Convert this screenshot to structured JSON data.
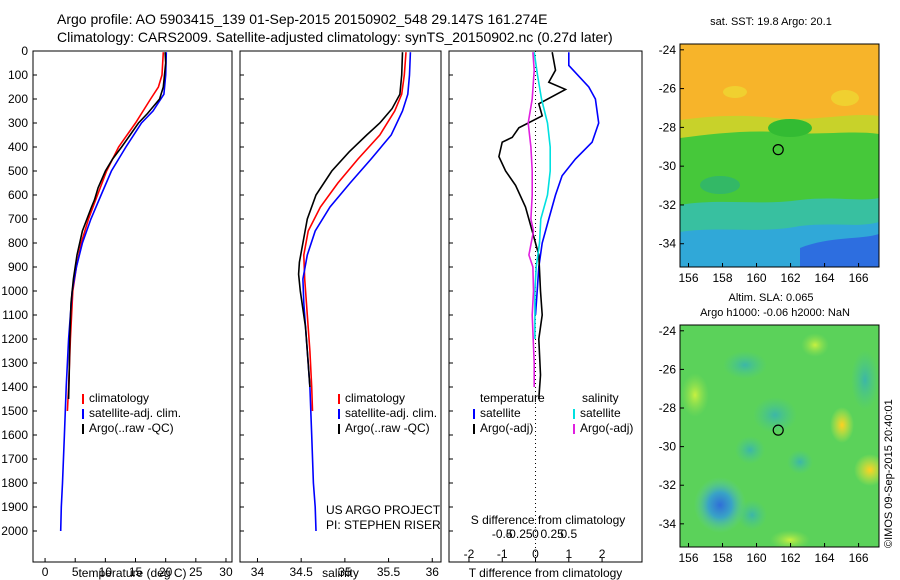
{
  "header": {
    "line1": "Argo profile: AO 5903415_139 01-Sep-2015 20150902_548 29.147S 161.274E",
    "line2": "Climatology: CARS2009. Satellite-adjusted climatology: synTS_20150902.nc (0.27d later)"
  },
  "colors": {
    "climatology": "#ff0000",
    "satellite": "#0000ff",
    "argo": "#000000",
    "t_satellite": "#0000ff",
    "s_satellite": "#00e0e0",
    "s_argo": "#e020e0"
  },
  "chart_data": [
    {
      "type": "line",
      "panel": "temperature",
      "xlabel": "temperature (deg C)",
      "xlim": [
        -2,
        31
      ],
      "xticks": [
        0,
        5,
        10,
        15,
        20,
        25,
        30
      ],
      "ylim": [
        0,
        2100
      ],
      "yticks": [
        0,
        100,
        200,
        300,
        400,
        500,
        600,
        700,
        800,
        900,
        1000,
        1100,
        1200,
        1300,
        1400,
        1500,
        1600,
        1700,
        1800,
        1900,
        2000
      ],
      "legend": [
        "climatology",
        "satellite-adj. clim.",
        "Argo(..raw -QC)"
      ],
      "series": [
        {
          "name": "climatology",
          "color_key": "climatology",
          "x": [
            19.6,
            19.4,
            18.8,
            17.5,
            15.0,
            12.2,
            10.2,
            8.7,
            7.2,
            6.0,
            5.2,
            4.6,
            4.2,
            3.9,
            3.7
          ],
          "y": [
            5,
            100,
            150,
            200,
            300,
            400,
            500,
            600,
            700,
            800,
            900,
            1000,
            1200,
            1400,
            1500
          ]
        },
        {
          "name": "satellite-adj. clim.",
          "color_key": "satellite",
          "x": [
            20.1,
            20.0,
            19.7,
            17.9,
            16.0,
            13.4,
            11.0,
            9.3,
            7.6,
            6.2,
            5.2,
            4.5,
            3.9,
            3.5,
            3.2,
            2.9,
            2.7,
            2.6
          ],
          "y": [
            5,
            100,
            180,
            250,
            300,
            400,
            500,
            600,
            700,
            800,
            900,
            1000,
            1200,
            1400,
            1600,
            1800,
            1900,
            2000
          ]
        },
        {
          "name": "Argo(..raw -QC)",
          "color_key": "argo",
          "x": [
            19.9,
            20.0,
            19.8,
            19.6,
            19.0,
            17.0,
            15.5,
            14.1,
            12.7,
            11.2,
            10.0,
            8.8,
            8.2,
            7.7,
            6.2,
            5.3,
            4.7,
            4.3,
            4.1,
            4.0,
            3.9
          ],
          "y": [
            5,
            50,
            100,
            150,
            200,
            260,
            300,
            350,
            400,
            450,
            500,
            570,
            620,
            650,
            750,
            850,
            950,
            1050,
            1200,
            1350,
            1450
          ]
        }
      ]
    },
    {
      "type": "line",
      "panel": "salinity",
      "xlabel": "salinity",
      "xlim": [
        33.8,
        36.1
      ],
      "xticks": [
        34,
        34.5,
        35,
        35.5,
        36
      ],
      "ylim": [
        0,
        2100
      ],
      "legend": [
        "climatology",
        "satellite-adj. clim.",
        "Argo(..raw -QC)"
      ],
      "annotation": [
        "US ARGO PROJECT",
        "PI: STEPHEN RISER"
      ],
      "series": [
        {
          "name": "climatology",
          "color_key": "climatology",
          "x": [
            35.7,
            35.68,
            35.65,
            35.57,
            35.4,
            35.15,
            34.92,
            34.72,
            34.58,
            34.53,
            34.54,
            34.57,
            34.6,
            34.62,
            34.63
          ],
          "y": [
            5,
            100,
            180,
            250,
            350,
            450,
            550,
            650,
            750,
            850,
            950,
            1100,
            1250,
            1400,
            1500
          ]
        },
        {
          "name": "satellite-adj. clim.",
          "color_key": "satellite",
          "x": [
            35.75,
            35.74,
            35.72,
            35.66,
            35.53,
            35.3,
            35.06,
            34.83,
            34.66,
            34.57,
            34.52,
            34.53,
            34.56,
            34.6,
            34.62,
            34.64,
            34.66,
            34.67
          ],
          "y": [
            5,
            100,
            180,
            250,
            350,
            450,
            550,
            650,
            750,
            850,
            950,
            1050,
            1200,
            1400,
            1600,
            1800,
            1900,
            2000
          ]
        },
        {
          "name": "Argo(..raw -QC)",
          "color_key": "argo",
          "x": [
            35.66,
            35.65,
            35.63,
            35.54,
            35.4,
            35.25,
            35.05,
            34.85,
            34.67,
            34.57,
            34.52,
            34.48,
            34.47,
            34.49,
            34.55,
            34.58,
            34.6
          ],
          "y": [
            5,
            100,
            180,
            240,
            300,
            350,
            420,
            500,
            600,
            700,
            800,
            880,
            930,
            1000,
            1150,
            1300,
            1400
          ]
        }
      ]
    },
    {
      "type": "line",
      "panel": "difference",
      "xlabel": "T difference from climatology",
      "top_label": "S difference from climatology",
      "xlim": [
        -2.6,
        3.2
      ],
      "t_ticks": [
        -2,
        -1,
        0,
        1,
        2
      ],
      "s_ticks": [
        -0.5,
        -0.25,
        0,
        0.25,
        0.5
      ],
      "s_tick_labels": [
        "-0.5",
        "-0.25",
        "0",
        "0.25",
        "0.5"
      ],
      "ylim": [
        0,
        2100
      ],
      "legend_headers": [
        "temperature",
        "salinity"
      ],
      "legend": [
        "satellite",
        "Argo(-adj)",
        "satellite",
        "Argo(-adj)"
      ],
      "series": [
        {
          "name": "temperature satellite",
          "color_key": "t_satellite",
          "x": [
            1.0,
            1.0,
            1.6,
            1.8,
            1.9,
            1.7,
            1.2,
            0.8,
            0.6,
            0.4,
            0.2,
            0.1,
            0.05,
            0.0
          ],
          "y": [
            5,
            60,
            150,
            200,
            300,
            380,
            450,
            520,
            600,
            700,
            800,
            900,
            1000,
            1100
          ]
        },
        {
          "name": "temperature Argo(-adj)",
          "color_key": "argo",
          "x": [
            0.5,
            0.6,
            0.4,
            0.9,
            0.1,
            0.2,
            -0.5,
            -0.7,
            -1.0,
            -1.1,
            -0.9,
            -0.6,
            -0.3,
            -0.1,
            0.1,
            0.15,
            0.2,
            0.1,
            0.15,
            0.1
          ],
          "y": [
            5,
            80,
            130,
            160,
            220,
            270,
            320,
            360,
            380,
            440,
            500,
            560,
            650,
            750,
            850,
            1000,
            1100,
            1200,
            1350,
            1450
          ]
        },
        {
          "name": "salinity satellite",
          "color_key": "s_satellite",
          "x": [
            -0.02,
            0.03,
            0.09,
            0.18,
            0.22,
            0.22,
            0.18,
            0.08,
            0.06,
            0.01,
            -0.01,
            -0.01
          ],
          "y": [
            5,
            100,
            200,
            300,
            400,
            500,
            600,
            700,
            800,
            900,
            1000,
            1200
          ]
        },
        {
          "name": "salinity Argo(-adj)",
          "color_key": "s_argo",
          "x": [
            -0.04,
            -0.02,
            -0.05,
            -0.11,
            -0.07,
            -0.05,
            -0.05,
            -0.07,
            -0.03,
            -0.1,
            -0.04,
            -0.03,
            -0.05,
            -0.02,
            -0.02
          ],
          "y": [
            5,
            80,
            200,
            300,
            400,
            500,
            600,
            700,
            750,
            850,
            900,
            1000,
            1100,
            1300,
            1400
          ]
        }
      ]
    },
    {
      "type": "heatmap",
      "panel": "sst_map",
      "title": "sat. SST: 19.8 Argo: 20.1",
      "xlim": [
        155.5,
        167.2
      ],
      "ylim": [
        -35.2,
        -23.7
      ],
      "xticks": [
        156,
        158,
        160,
        162,
        164,
        166
      ],
      "yticks": [
        -24,
        -26,
        -28,
        -30,
        -32,
        -34
      ],
      "float_position": {
        "lon": 161.274,
        "lat": -29.147
      }
    },
    {
      "type": "heatmap",
      "panel": "sla_map",
      "title_line1": "Altim. SLA: 0.065",
      "title_line2": "Argo h1000: -0.06 h2000: NaN",
      "xlim": [
        155.5,
        167.2
      ],
      "ylim": [
        -35.2,
        -23.7
      ],
      "xticks": [
        156,
        158,
        160,
        162,
        164,
        166
      ],
      "yticks": [
        -24,
        -26,
        -28,
        -30,
        -32,
        -34
      ],
      "float_position": {
        "lon": 161.274,
        "lat": -29.147
      }
    }
  ],
  "footer": {
    "watermark": "©IMOS 09-Sep-2015 20:40:01"
  }
}
